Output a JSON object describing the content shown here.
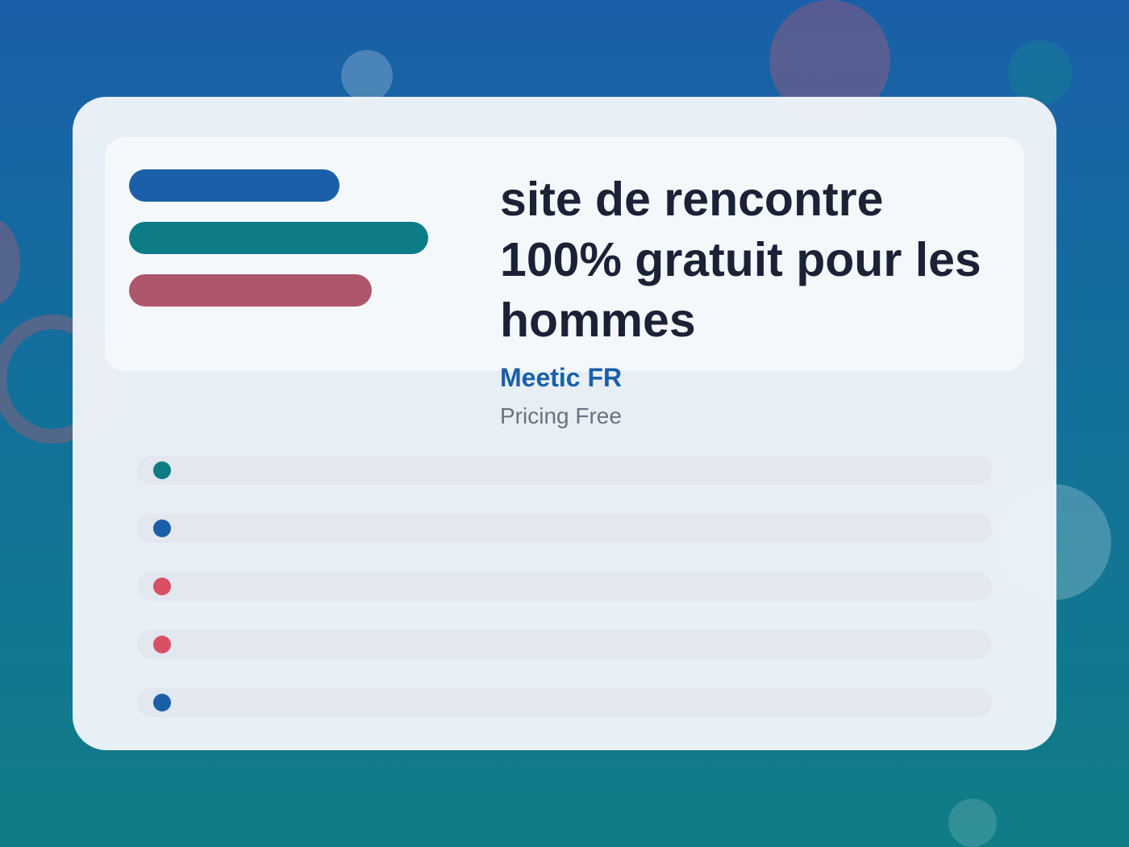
{
  "header": {
    "title": "site de rencontre 100% gratuit pour les hommes",
    "brand": "Meetic FR",
    "pricing": "Pricing Free"
  }
}
